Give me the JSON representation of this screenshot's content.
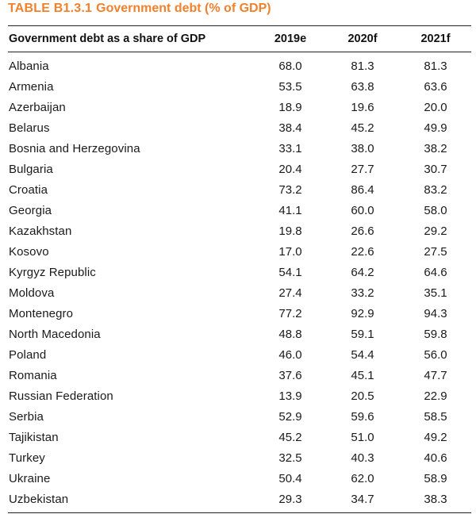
{
  "title": {
    "label": "TABLE B1.3.1",
    "text": "Government debt (% of GDP)"
  },
  "table": {
    "headers": [
      "Government debt as a share of GDP",
      "2019e",
      "2020f",
      "2021f"
    ],
    "rows": [
      [
        "Albania",
        "68.0",
        "81.3",
        "81.3"
      ],
      [
        "Armenia",
        "53.5",
        "63.8",
        "63.6"
      ],
      [
        "Azerbaijan",
        "18.9",
        "19.6",
        "20.0"
      ],
      [
        "Belarus",
        "38.4",
        "45.2",
        "49.9"
      ],
      [
        "Bosnia and Herzegovina",
        "33.1",
        "38.0",
        "38.2"
      ],
      [
        "Bulgaria",
        "20.4",
        "27.7",
        "30.7"
      ],
      [
        "Croatia",
        "73.2",
        "86.4",
        "83.2"
      ],
      [
        "Georgia",
        "41.1",
        "60.0",
        "58.0"
      ],
      [
        "Kazakhstan",
        "19.8",
        "26.6",
        "29.2"
      ],
      [
        "Kosovo",
        "17.0",
        "22.6",
        "27.5"
      ],
      [
        "Kyrgyz Republic",
        "54.1",
        "64.2",
        "64.6"
      ],
      [
        "Moldova",
        "27.4",
        "33.2",
        "35.1"
      ],
      [
        "Montenegro",
        "77.2",
        "92.9",
        "94.3"
      ],
      [
        "North Macedonia",
        "48.8",
        "59.1",
        "59.8"
      ],
      [
        "Poland",
        "46.0",
        "54.4",
        "56.0"
      ],
      [
        "Romania",
        "37.6",
        "45.1",
        "47.7"
      ],
      [
        "Russian Federation",
        "13.9",
        "20.5",
        "22.9"
      ],
      [
        "Serbia",
        "52.9",
        "59.6",
        "58.5"
      ],
      [
        "Tajikistan",
        "45.2",
        "51.0",
        "49.2"
      ],
      [
        "Turkey",
        "32.5",
        "40.3",
        "40.6"
      ],
      [
        "Ukraine",
        "50.4",
        "62.0",
        "58.9"
      ],
      [
        "Uzbekistan",
        "29.3",
        "34.7",
        "38.3"
      ]
    ]
  },
  "colors": {
    "title": "#f0812d",
    "rule": "#222222",
    "text": "#1a1a1a"
  }
}
